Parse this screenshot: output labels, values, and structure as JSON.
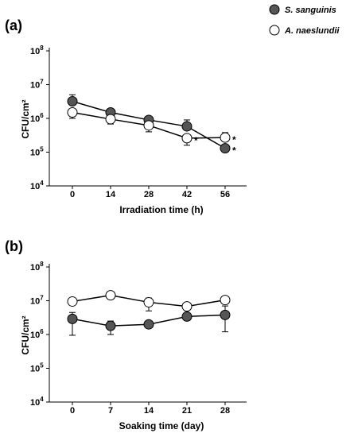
{
  "legend": [
    {
      "name": "S. sanguinis",
      "fill": "#555555"
    },
    {
      "name": "A. naeslundii",
      "fill": "#ffffff"
    }
  ],
  "chart_data": [
    {
      "panel": "(a)",
      "type": "line",
      "x": [
        0,
        14,
        28,
        42,
        56
      ],
      "xlabel": "Irradiation time (h)",
      "ylabel": "CFU/cm²",
      "yscale": "log",
      "ylim": [
        10000,
        100000000
      ],
      "yticks": [
        {
          "value": 10000,
          "base": "10",
          "exp": "4"
        },
        {
          "value": 100000,
          "base": "10",
          "exp": "5"
        },
        {
          "value": 1000000,
          "base": "10",
          "exp": "6"
        },
        {
          "value": 10000000,
          "base": "10",
          "exp": "7"
        },
        {
          "value": 100000000,
          "base": "10",
          "exp": "8"
        }
      ],
      "series": [
        {
          "name": "S. sanguinis",
          "values": [
            3200000,
            1500000,
            900000,
            580000,
            130000
          ],
          "err_up": [
            5000000,
            null,
            null,
            900000,
            null
          ],
          "err_down": [
            null,
            null,
            null,
            null,
            null
          ]
        },
        {
          "name": "A. naeslundii",
          "values": [
            1500000,
            950000,
            620000,
            260000,
            270000
          ],
          "err_up": [
            null,
            null,
            null,
            null,
            380000
          ],
          "err_down": [
            1000000,
            680000,
            400000,
            160000,
            null
          ]
        }
      ],
      "annotations": [
        {
          "text": "*",
          "x": 42,
          "series": "A. naeslundii"
        },
        {
          "text": "*",
          "x": 56,
          "series": "A. naeslundii"
        },
        {
          "text": "*",
          "x": 56,
          "series": "S. sanguinis"
        }
      ]
    },
    {
      "panel": "(b)",
      "type": "line",
      "x": [
        0,
        7,
        14,
        21,
        28
      ],
      "xlabel": "Soaking time (day)",
      "ylabel": "CFU/cm²",
      "yscale": "log",
      "ylim": [
        10000,
        100000000
      ],
      "yticks": [
        {
          "value": 10000,
          "base": "10",
          "exp": "4"
        },
        {
          "value": 100000,
          "base": "10",
          "exp": "5"
        },
        {
          "value": 1000000,
          "base": "10",
          "exp": "6"
        },
        {
          "value": 10000000,
          "base": "10",
          "exp": "7"
        },
        {
          "value": 100000000,
          "base": "10",
          "exp": "8"
        }
      ],
      "series": [
        {
          "name": "S. sanguinis",
          "values": [
            2900000,
            1800000,
            2000000,
            3400000,
            3800000
          ],
          "err_up": [
            4500000,
            2500000,
            null,
            null,
            7000000
          ],
          "err_down": [
            950000,
            1000000,
            null,
            null,
            1200000
          ]
        },
        {
          "name": "A. naeslundii",
          "values": [
            9500000,
            14500000,
            9000000,
            6800000,
            10500000
          ],
          "err_up": [
            null,
            null,
            12000000,
            null,
            13500000
          ],
          "err_down": [
            null,
            null,
            5000000,
            null,
            null
          ]
        }
      ],
      "annotations": []
    }
  ]
}
